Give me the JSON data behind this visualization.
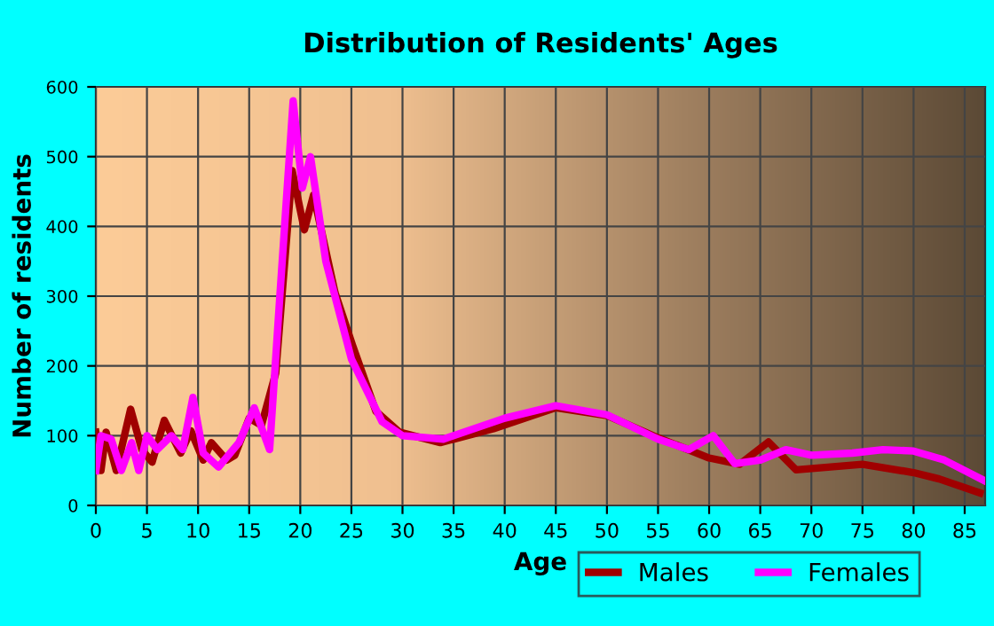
{
  "chart_data": {
    "type": "line",
    "title": "Distribution of Residents' Ages",
    "xlabel": "Age",
    "ylabel": "Number of residents",
    "xlim": [
      0,
      87
    ],
    "xticks": [
      0,
      5,
      10,
      15,
      20,
      25,
      30,
      35,
      40,
      45,
      50,
      55,
      60,
      65,
      70,
      75,
      80,
      85
    ],
    "ylim": [
      0,
      600
    ],
    "yticks": [
      0,
      100,
      200,
      300,
      400,
      500,
      600
    ],
    "grid": true,
    "legend": "bottom right",
    "series": [
      {
        "name": "Males",
        "color": "#a00000",
        "x": [
          0,
          0.5,
          1,
          2,
          3.4,
          4.5,
          5.5,
          6.7,
          8.3,
          9.3,
          10.5,
          11.3,
          12.8,
          13.6,
          15,
          16.2,
          17.6,
          19.2,
          20.4,
          21.3,
          23.4,
          25.1,
          27.4,
          29.7,
          33.7,
          38.9,
          45,
          50,
          55,
          60,
          63,
          65.8,
          68.5,
          75,
          80,
          82.5,
          86.5
        ],
        "values": [
          105,
          50,
          105,
          50,
          138,
          80,
          62,
          122,
          75,
          107,
          65,
          90,
          65,
          72,
          125,
          115,
          190,
          480,
          395,
          445,
          305,
          230,
          135,
          105,
          90,
          110,
          140,
          129,
          97,
          68,
          59,
          91,
          51,
          59,
          47,
          38,
          18
        ]
      },
      {
        "name": "Females",
        "color": "#ff00ff",
        "x": [
          0,
          0.5,
          1.5,
          2.5,
          3.5,
          4.2,
          5,
          6,
          7.4,
          8.5,
          9.5,
          10.5,
          12,
          14,
          15.5,
          17,
          18,
          19.3,
          20.2,
          21,
          22.5,
          25,
          28,
          30,
          34,
          40,
          45,
          50,
          55,
          58,
          60.4,
          62.5,
          65,
          67.5,
          70,
          74,
          77,
          80,
          83,
          87
        ],
        "values": [
          50,
          100,
          95,
          50,
          90,
          50,
          100,
          80,
          100,
          80,
          155,
          75,
          55,
          90,
          140,
          80,
          300,
          580,
          455,
          500,
          350,
          210,
          120,
          100,
          95,
          125,
          143,
          130,
          95,
          80,
          100,
          60,
          65,
          80,
          72,
          75,
          80,
          78,
          65,
          35
        ]
      }
    ]
  }
}
